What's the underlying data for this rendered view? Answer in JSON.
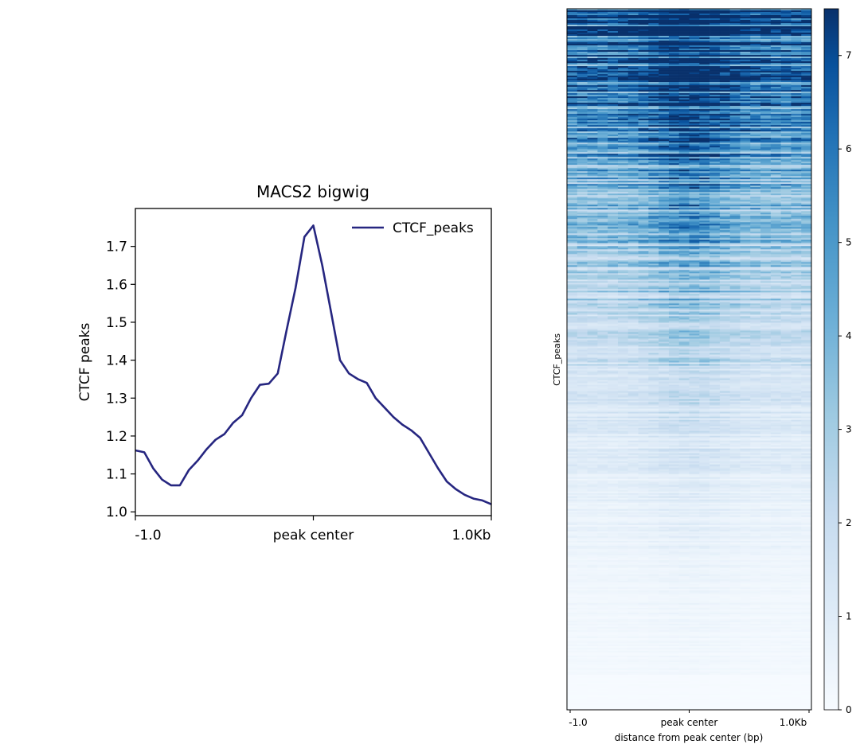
{
  "chart_data": [
    {
      "type": "line",
      "title": "MACS2 bigwig",
      "xlabel": "",
      "ylabel": "CTCF peaks",
      "x_tick_labels": [
        "-1.0",
        "peak center",
        "1.0Kb"
      ],
      "x_range_bp": [
        -1000,
        1000
      ],
      "ylim": [
        0.99,
        1.8
      ],
      "y_ticks": [
        "1.0",
        "1.1",
        "1.2",
        "1.3",
        "1.4",
        "1.5",
        "1.6",
        "1.7"
      ],
      "legend_position": "top-right",
      "series": [
        {
          "name": "CTCF_peaks",
          "color": "#262680",
          "x": [
            -1000,
            -950,
            -900,
            -850,
            -800,
            -750,
            -700,
            -650,
            -600,
            -550,
            -500,
            -450,
            -400,
            -350,
            -300,
            -250,
            -200,
            -150,
            -100,
            -50,
            0,
            50,
            100,
            150,
            200,
            250,
            300,
            350,
            400,
            450,
            500,
            550,
            600,
            650,
            700,
            750,
            800,
            850,
            900,
            950,
            1000
          ],
          "values": [
            1.162,
            1.157,
            1.115,
            1.085,
            1.07,
            1.07,
            1.11,
            1.135,
            1.165,
            1.19,
            1.205,
            1.235,
            1.255,
            1.3,
            1.335,
            1.338,
            1.365,
            1.48,
            1.59,
            1.725,
            1.755,
            1.65,
            1.525,
            1.4,
            1.365,
            1.35,
            1.34,
            1.3,
            1.275,
            1.25,
            1.23,
            1.215,
            1.195,
            1.155,
            1.115,
            1.08,
            1.06,
            1.045,
            1.035,
            1.03,
            1.02
          ]
        }
      ]
    },
    {
      "type": "heatmap",
      "ylabel": "CTCF_peaks",
      "xlabel": "distance from peak center (bp)",
      "x_tick_labels": [
        "-1.0",
        "peak center",
        "1.0Kb"
      ],
      "colormap": "Blues",
      "color_low": "#f7fbff",
      "color_high": "#08306b",
      "color_range": [
        0,
        7.5
      ],
      "colorbar_ticks": [
        "0",
        "1",
        "2",
        "3",
        "4",
        "5",
        "6",
        "7"
      ],
      "rows_sorted": "descending signal",
      "pattern": "rows sorted by signal, densest at top, enrichment around peak center"
    }
  ]
}
